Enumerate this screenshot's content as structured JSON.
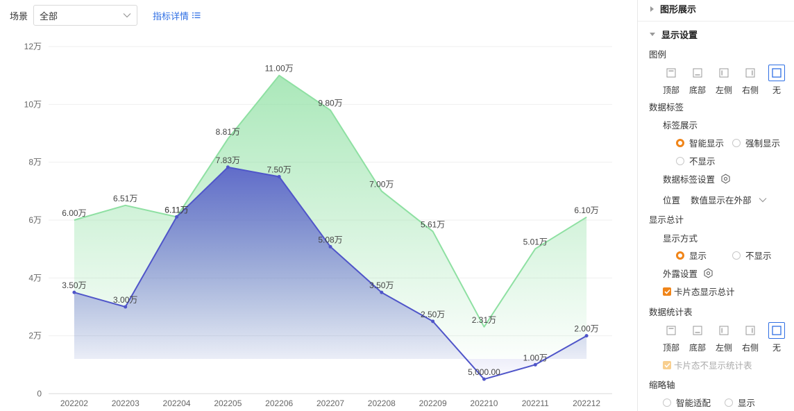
{
  "toolbar": {
    "scene_label": "场景",
    "scene_value": "全部",
    "metric_link": "指标详情"
  },
  "chart_data": {
    "type": "area",
    "categories": [
      "202202",
      "202203",
      "202204",
      "202205",
      "202206",
      "202207",
      "202208",
      "202209",
      "202210",
      "202211",
      "202212"
    ],
    "series": [
      {
        "color": "#8ee0a2",
        "values": [
          60000,
          65100,
          61100,
          88100,
          110000,
          98000,
          70000,
          56100,
          23100,
          50100,
          61000
        ],
        "labels": [
          "6.00万",
          "6.51万",
          "6.11万",
          "8.81万",
          "11.00万",
          "9.80万",
          "7.00万",
          "5.61万",
          "2.31万",
          "5.01万",
          "6.10万"
        ]
      },
      {
        "color": "#4f55c9",
        "values": [
          35000,
          30000,
          61100,
          78300,
          75000,
          50800,
          35000,
          25000,
          5000,
          10000,
          20000
        ],
        "labels": [
          "3.50万",
          "3.00万",
          "6.11万",
          "7.83万",
          "7.50万",
          "5.08万",
          "3.50万",
          "2.50万",
          "5,000.00",
          "1.00万",
          "2.00万"
        ]
      }
    ],
    "ylim": [
      0,
      120000
    ],
    "yticks": [
      0,
      20000,
      40000,
      60000,
      80000,
      100000,
      120000
    ],
    "ytick_labels": [
      "0",
      "2万",
      "4万",
      "6万",
      "8万",
      "10万",
      "12万"
    ],
    "grid": true,
    "legend": "none"
  },
  "settings": {
    "graph_section": "图形展示",
    "display_section": "显示设置",
    "legend": {
      "title": "图例",
      "options": [
        {
          "label": "顶部",
          "icon": "layout-top-icon"
        },
        {
          "label": "底部",
          "icon": "layout-bottom-icon"
        },
        {
          "label": "左侧",
          "icon": "layout-left-icon"
        },
        {
          "label": "右侧",
          "icon": "layout-right-icon"
        },
        {
          "label": "无",
          "icon": "layout-none-icon"
        }
      ],
      "selected": "无"
    },
    "data_label": {
      "title": "数据标签",
      "show_title": "标签展示",
      "opt_smart": "智能显示",
      "opt_force": "强制显示",
      "opt_hide": "不显示",
      "settings_label": "数据标签设置",
      "position_label": "位置",
      "position_value": "数值显示在外部"
    },
    "total": {
      "title": "显示总计",
      "mode_title": "显示方式",
      "opt_show": "显示",
      "opt_hide": "不显示",
      "expose_label": "外露设置",
      "card_total": "卡片态显示总计"
    },
    "stats_table": {
      "title": "数据统计表",
      "options": [
        {
          "label": "顶部",
          "icon": "layout-top-icon"
        },
        {
          "label": "底部",
          "icon": "layout-bottom-icon"
        },
        {
          "label": "左侧",
          "icon": "layout-left-icon"
        },
        {
          "label": "右侧",
          "icon": "layout-right-icon"
        },
        {
          "label": "无",
          "icon": "layout-none-icon"
        }
      ],
      "selected": "无",
      "card_hide": "卡片态不显示统计表"
    },
    "thumb_axis": {
      "title": "缩略轴",
      "opt_smart": "智能适配",
      "opt_show": "显示"
    }
  }
}
